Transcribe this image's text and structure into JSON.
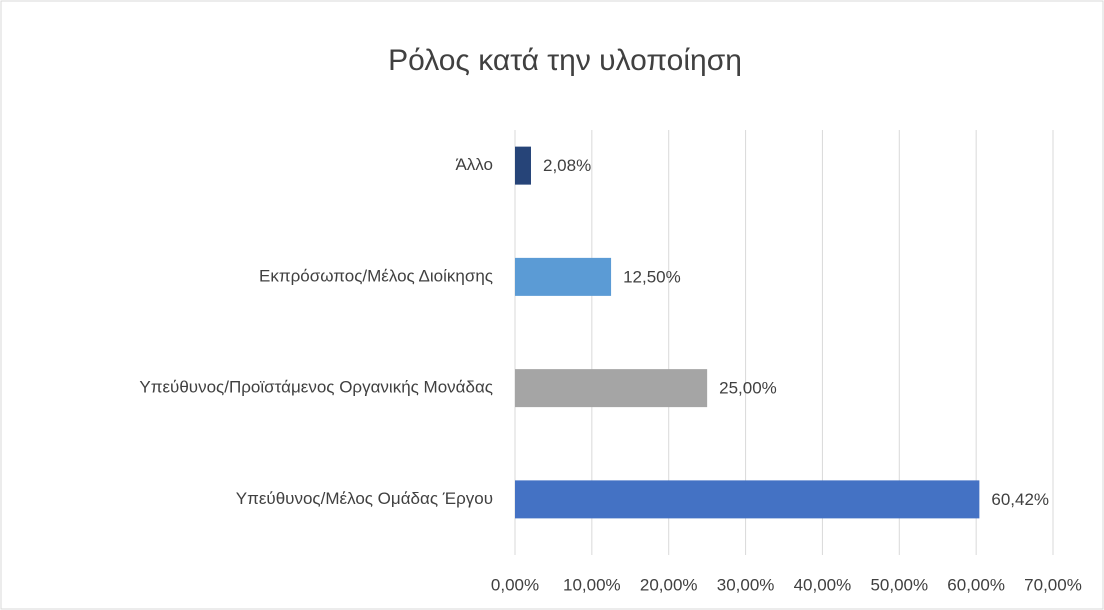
{
  "chart_data": {
    "type": "hbar",
    "title": "Ρόλος κατά την υλοποίηση",
    "categories": [
      "Άλλο",
      "Εκπρόσωπος/Μέλος Διοίκησης",
      "Υπεύθυνος/Προϊστάμενος Οργανικής Μονάδας",
      "Υπεύθυνος/Μέλος Ομάδας Έργου"
    ],
    "values": [
      2.08,
      12.5,
      25.0,
      60.42
    ],
    "value_labels": [
      "2,08%",
      "12,50%",
      "25,00%",
      "60,42%"
    ],
    "colors": [
      "#264478",
      "#5b9bd5",
      "#a5a5a5",
      "#4472c4"
    ],
    "xlim": [
      0,
      70
    ],
    "xticks": [
      {
        "value": 0,
        "label": "0,00%"
      },
      {
        "value": 10,
        "label": "10,00%"
      },
      {
        "value": 20,
        "label": "20,00%"
      },
      {
        "value": 30,
        "label": "30,00%"
      },
      {
        "value": 40,
        "label": "40,00%"
      },
      {
        "value": 50,
        "label": "50,00%"
      },
      {
        "value": 60,
        "label": "60,00%"
      },
      {
        "value": 70,
        "label": "70,00%"
      }
    ],
    "grid": true
  }
}
